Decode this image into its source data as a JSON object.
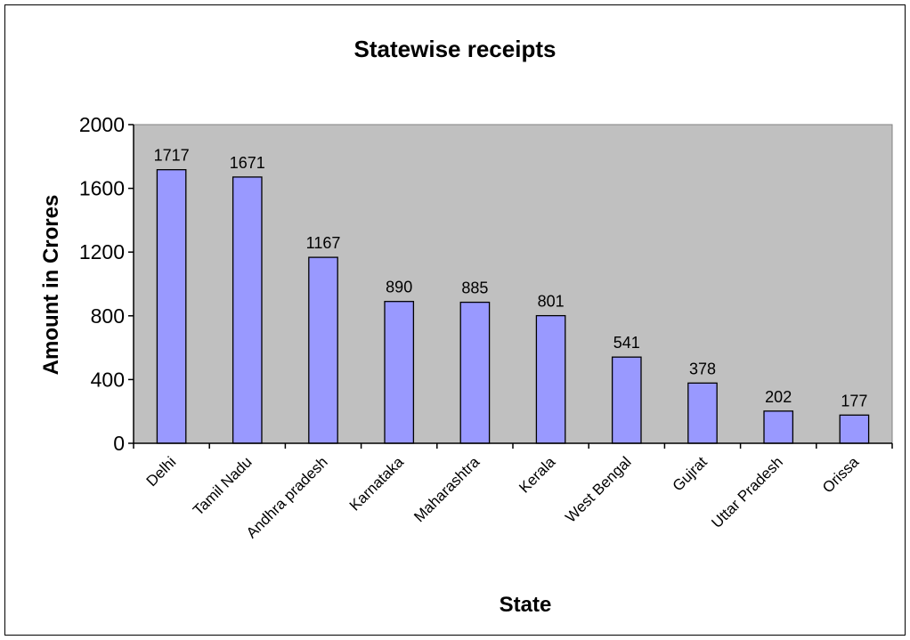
{
  "chart_data": {
    "type": "bar",
    "title": "Statewise receipts",
    "xlabel": "State",
    "ylabel": "Amount in Crores",
    "categories": [
      "Delhi",
      "Tamil Nadu",
      "Andhra pradesh",
      "Karnataka",
      "Maharashtra",
      "Kerala",
      "West Bengal",
      "Gujrat",
      "Uttar Pradesh",
      "Orissa"
    ],
    "values": [
      1717,
      1671,
      1167,
      890,
      885,
      801,
      541,
      378,
      202,
      177
    ],
    "data_labels": [
      "1717",
      "1671",
      "1167",
      "890",
      "885",
      "801",
      "541",
      "378",
      "202",
      "177"
    ],
    "ylim": [
      0,
      2000
    ],
    "yticks": [
      0,
      400,
      800,
      1200,
      1600,
      2000
    ],
    "grid": false,
    "legend": "none",
    "colors": {
      "bar_fill": "#9999ff",
      "bar_stroke": "#000000",
      "plot_background": "#c0c0c0"
    }
  }
}
